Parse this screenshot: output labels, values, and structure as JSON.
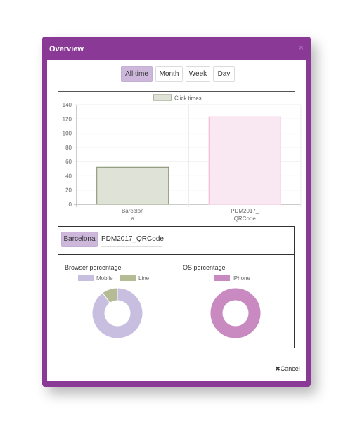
{
  "modal": {
    "title": "Overview",
    "close_symbol": "×"
  },
  "period_tabs": [
    "All time",
    "Month",
    "Week",
    "Day"
  ],
  "active_period": "All time",
  "chart_data": {
    "type": "bar",
    "categories": [
      "Barcelona",
      "PDM2017_QRCode"
    ],
    "category_label_lines": [
      [
        "Barcelon",
        "a"
      ],
      [
        "PDM2017_",
        "QRCode"
      ]
    ],
    "series": [
      {
        "name": "Click times",
        "values": [
          52,
          123
        ]
      }
    ],
    "ylim": [
      0,
      140
    ],
    "yticks": [
      0,
      20,
      40,
      60,
      80,
      100,
      120,
      140
    ],
    "legend": "top",
    "grid": true,
    "colors": {
      "fill": [
        "#dfe2d6",
        "#f9e8f1"
      ],
      "stroke": [
        "#7f8a68",
        "#f1b2d0"
      ],
      "legend_fill": "#dfe2d6",
      "legend_stroke": "#7f8a68"
    }
  },
  "detail_tabs": [
    "Barcelona",
    "PDM2017_QRCode"
  ],
  "active_detail": "Barcelona",
  "pies": [
    {
      "title": "Browser percentage",
      "type": "pie",
      "labels": [
        "Mobile",
        "Line"
      ],
      "values": [
        90,
        10
      ],
      "colors": [
        "#c8bedf",
        "#b5bb94"
      ]
    },
    {
      "title": "OS percentage",
      "type": "pie",
      "labels": [
        "iPhone"
      ],
      "values": [
        100
      ],
      "colors": [
        "#c88ac0"
      ]
    }
  ],
  "footer": {
    "cancel_icon": "✖",
    "cancel_label": "Cancel"
  }
}
